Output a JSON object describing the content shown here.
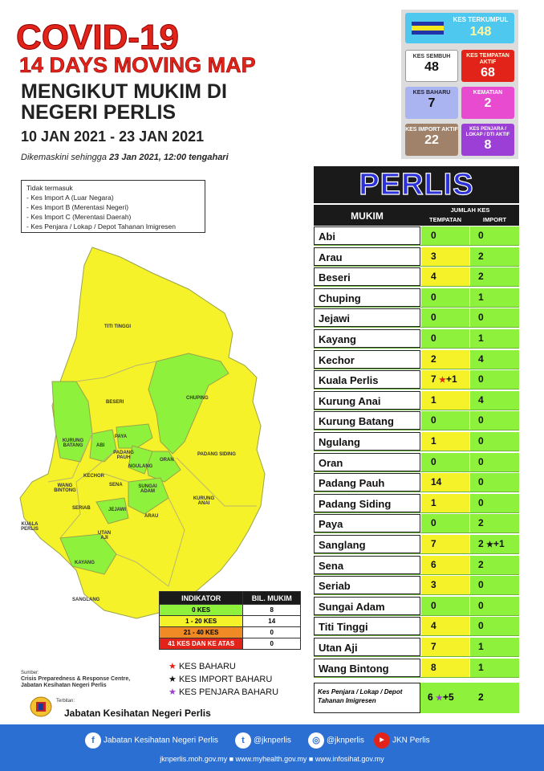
{
  "header": {
    "title": "COVID-19",
    "subtitle": "14 DAYS MOVING MAP",
    "line1": "MENGIKUT MUKIM DI",
    "line2": "NEGERI PERLIS",
    "date_range": "10 JAN 2021 - 23 JAN 2021",
    "updated_prefix": "Dikemaskini sehingga ",
    "updated_value": "23 Jan 2021, 12:00 tengahari"
  },
  "note": {
    "title": "Tidak termasuk",
    "items": [
      "- Kes Import A (Luar Negara)",
      "- Kes Import B (Merentasi Negeri)",
      "- Kes Import C (Merentasi Daerah)",
      "- Kes Penjara / Lokap / Depot Tahanan Imigresen"
    ]
  },
  "stats": {
    "terkumpul": {
      "label": "KES TERKUMPUL",
      "value": "148"
    },
    "sembuh": {
      "label": "KES SEMBUH",
      "value": "48"
    },
    "tempatan_aktif": {
      "label": "KES TEMPATAN AKTIF",
      "value": "68"
    },
    "baharu": {
      "label": "KES BAHARU",
      "value": "7"
    },
    "kematian": {
      "label": "KEMATIAN",
      "value": "2"
    },
    "import_aktif": {
      "label": "KES IMPORT AKTIF",
      "value": "22"
    },
    "penjara": {
      "label": "KES PENJARA / LOKAP / DTI AKTIF",
      "value": "8"
    }
  },
  "table": {
    "state": "PERLIS",
    "col_mukim": "MUKIM",
    "col_jumlah": "JUMLAH KES",
    "col_tempatan": "TEMPATAN",
    "col_import": "IMPORT",
    "rows": [
      {
        "name": "Abi",
        "tempatan": "0",
        "import": "0"
      },
      {
        "name": "Arau",
        "tempatan": "3",
        "import": "2"
      },
      {
        "name": "Beseri",
        "tempatan": "4",
        "import": "2"
      },
      {
        "name": "Chuping",
        "tempatan": "0",
        "import": "1"
      },
      {
        "name": "Jejawi",
        "tempatan": "0",
        "import": "0"
      },
      {
        "name": "Kayang",
        "tempatan": "0",
        "import": "1"
      },
      {
        "name": "Kechor",
        "tempatan": "2",
        "import": "4"
      },
      {
        "name": "Kuala Perlis",
        "tempatan": "7",
        "import": "0",
        "tempatan_extra": "+1"
      },
      {
        "name": "Kurung Anai",
        "tempatan": "1",
        "import": "4"
      },
      {
        "name": "Kurung Batang",
        "tempatan": "0",
        "import": "0"
      },
      {
        "name": "Ngulang",
        "tempatan": "1",
        "import": "0"
      },
      {
        "name": "Oran",
        "tempatan": "0",
        "import": "0"
      },
      {
        "name": "Padang Pauh",
        "tempatan": "14",
        "import": "0"
      },
      {
        "name": "Padang Siding",
        "tempatan": "1",
        "import": "0"
      },
      {
        "name": "Paya",
        "tempatan": "0",
        "import": "2"
      },
      {
        "name": "Sanglang",
        "tempatan": "7",
        "import": "2",
        "import_extra": "+1"
      },
      {
        "name": "Sena",
        "tempatan": "6",
        "import": "2"
      },
      {
        "name": "Seriab",
        "tempatan": "3",
        "import": "0"
      },
      {
        "name": "Sungai Adam",
        "tempatan": "0",
        "import": "0"
      },
      {
        "name": "Titi Tinggi",
        "tempatan": "4",
        "import": "0"
      },
      {
        "name": "Utan Aji",
        "tempatan": "7",
        "import": "1"
      },
      {
        "name": "Wang Bintong",
        "tempatan": "8",
        "import": "1"
      }
    ],
    "footer_row": {
      "name": "Kes Penjara / Lokap / Depot Tahanan Imigresen",
      "tempatan": "6",
      "tempatan_extra": "+5",
      "import": "2"
    }
  },
  "map_labels": {
    "titi_tinggi": "TITI TINGGI",
    "beseri": "BESERI",
    "chuping": "CHUPING",
    "kurung_batang": "KURUNG BATANG",
    "abi": "ABI",
    "paya": "PAYA",
    "padang_pauh": "PADANG PAUH",
    "ngulang": "NGULANG",
    "oran": "ORAN",
    "padang_siding": "PADANG SIDING",
    "kechor": "KECHOR",
    "wang_bintong": "WANG BINTONG",
    "sena": "SENA",
    "sungai_adam": "SUNGAI ADAM",
    "seriab": "SERIAB",
    "jejawi": "JEJAWI",
    "kuala_perlis": "KUALA PERLIS",
    "utan_aji": "UTAN AJI",
    "arau": "ARAU",
    "kurung_anai": "KURUNG ANAI",
    "kayang": "KAYANG",
    "sanglang": "SANGLANG"
  },
  "indicator": {
    "col1": "INDIKATOR",
    "col2": "BIL. MUKIM",
    "rows": [
      {
        "label": "0 KES",
        "count": "8",
        "color": "#8ef23c"
      },
      {
        "label": "1 - 20 KES",
        "count": "14",
        "color": "#f6f22a"
      },
      {
        "label": "21 - 40 KES",
        "count": "0",
        "color": "#f08a24"
      },
      {
        "label": "41 KES DAN KE ATAS",
        "count": "0",
        "color": "#e2231a"
      }
    ]
  },
  "keys": [
    {
      "label": "KES BAHARU",
      "color": "#e2231a"
    },
    {
      "label": "KES IMPORT BAHARU",
      "color": "#111111"
    },
    {
      "label": "KES PENJARA BAHARU",
      "color": "#9b3fd6"
    }
  ],
  "source": {
    "label": "Sumber:",
    "line1": "Crisis Preparedness & Response Centre,",
    "line2": "Jabatan Kesihatan Negeri Perlis"
  },
  "publisher": {
    "label": "Terbitan:",
    "name": "Jabatan Kesihatan Negeri Perlis"
  },
  "footer": {
    "facebook": "Jabatan Kesihatan Negeri Perlis",
    "twitter": "@jknperlis",
    "instagram": "@jknperlis",
    "youtube": "JKN Perlis",
    "urls": "jknperlis.moh.gov.my ■ www.myhealth.gov.my ■ www.infosihat.gov.my"
  },
  "colors": {
    "green": "#8ef23c",
    "yellow": "#f6f22a",
    "title_red": "#e2231a",
    "footer_blue": "#2c6fd3"
  }
}
